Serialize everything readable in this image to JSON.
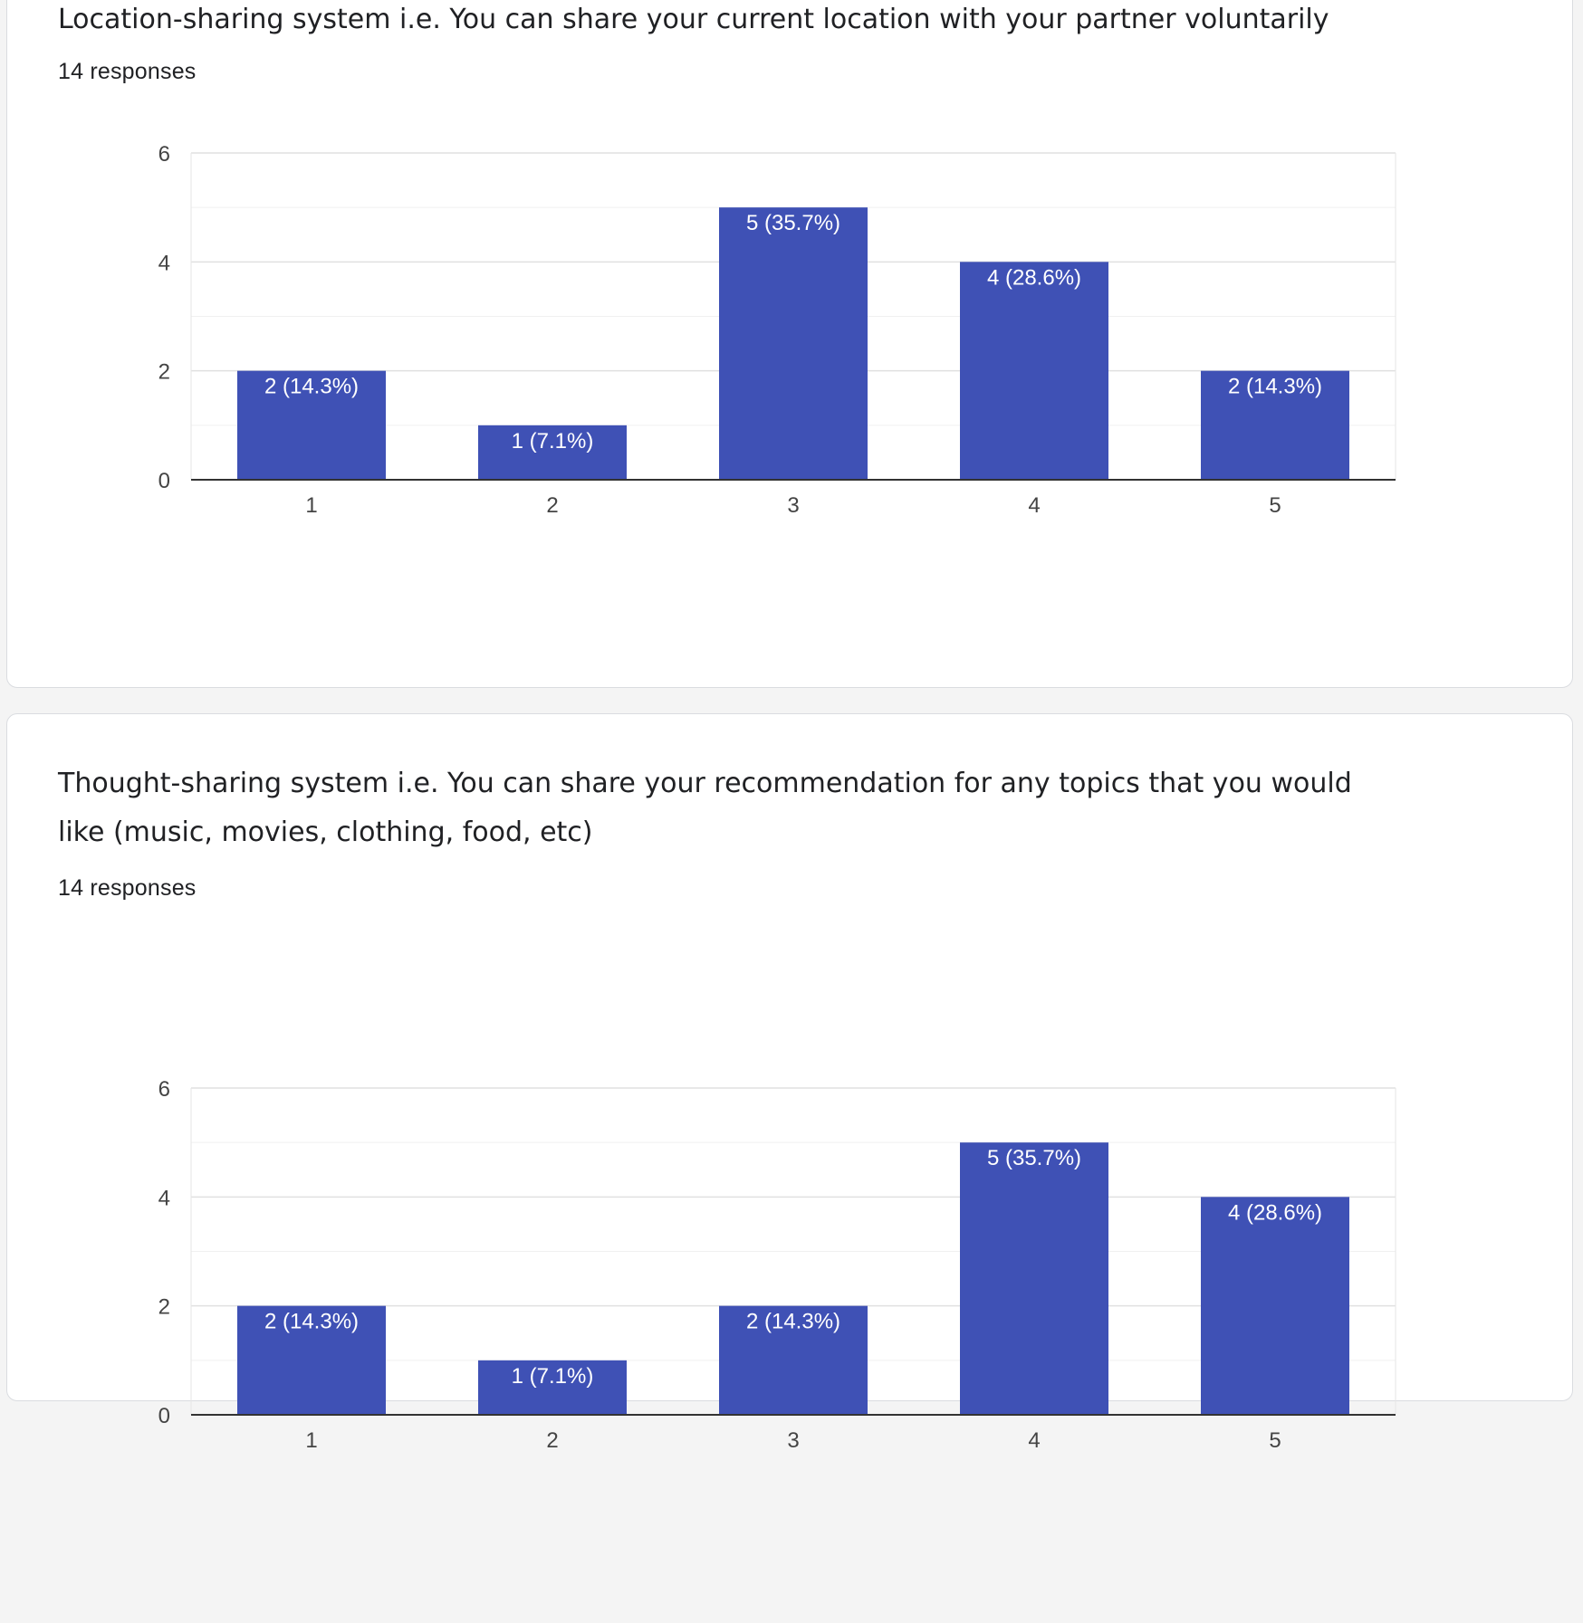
{
  "questions": [
    {
      "title": "Location-sharing system i.e. You can share your current location with your partner voluntarily",
      "responses": "14 responses"
    },
    {
      "title": "Thought-sharing system i.e. You can share your recommendation for any topics that you would like (music, movies, clothing, food, etc)",
      "responses": "14 responses"
    }
  ],
  "colors": {
    "bar": "#3f51b5",
    "bar_label": "#ffffff",
    "gridline": "#e6e6e6",
    "axis": "#333333",
    "tick": "#444444"
  },
  "chart_data": [
    {
      "type": "bar",
      "categories": [
        "1",
        "2",
        "3",
        "4",
        "5"
      ],
      "values": [
        2,
        1,
        5,
        4,
        2
      ],
      "labels": [
        "2 (14.3%)",
        "1 (7.1%)",
        "5 (35.7%)",
        "4 (28.6%)",
        "2 (14.3%)"
      ],
      "yticks": [
        "0",
        "2",
        "4",
        "6"
      ],
      "ylim": [
        0,
        6
      ],
      "grid": true
    },
    {
      "type": "bar",
      "categories": [
        "1",
        "2",
        "3",
        "4",
        "5"
      ],
      "values": [
        2,
        1,
        2,
        5,
        4
      ],
      "labels": [
        "2 (14.3%)",
        "1 (7.1%)",
        "2 (14.3%)",
        "5 (35.7%)",
        "4 (28.6%)"
      ],
      "yticks": [
        "0",
        "2",
        "4",
        "6"
      ],
      "ylim": [
        0,
        6
      ],
      "grid": true
    }
  ]
}
